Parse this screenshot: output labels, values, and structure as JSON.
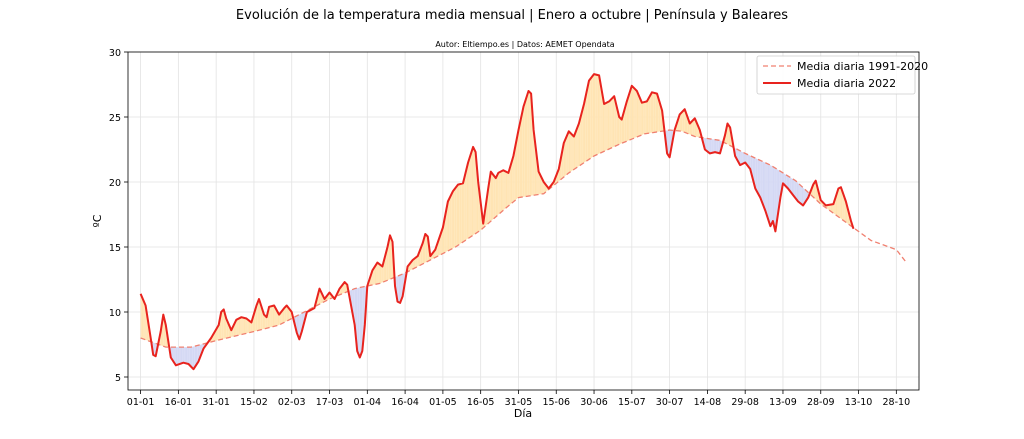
{
  "chart_data": {
    "type": "line",
    "title": "Evolución de la temperatura media mensual | Enero a octubre | Península y Baleares",
    "subtitle": "Autor: Eltiempo.es | Datos: AEMET Opendata",
    "xlabel": "Día",
    "ylabel": "ºC",
    "ylim": [
      4,
      30
    ],
    "xlim": [
      -5,
      309
    ],
    "yticks": [
      5,
      10,
      15,
      20,
      25,
      30
    ],
    "x_ticks": [
      {
        "x": 0,
        "label": "01-01"
      },
      {
        "x": 15,
        "label": "16-01"
      },
      {
        "x": 30,
        "label": "31-01"
      },
      {
        "x": 45,
        "label": "15-02"
      },
      {
        "x": 60,
        "label": "02-03"
      },
      {
        "x": 75,
        "label": "17-03"
      },
      {
        "x": 90,
        "label": "01-04"
      },
      {
        "x": 105,
        "label": "16-04"
      },
      {
        "x": 120,
        "label": "01-05"
      },
      {
        "x": 135,
        "label": "16-05"
      },
      {
        "x": 150,
        "label": "31-05"
      },
      {
        "x": 165,
        "label": "15-06"
      },
      {
        "x": 180,
        "label": "30-06"
      },
      {
        "x": 195,
        "label": "15-07"
      },
      {
        "x": 210,
        "label": "30-07"
      },
      {
        "x": 225,
        "label": "14-08"
      },
      {
        "x": 240,
        "label": "29-08"
      },
      {
        "x": 255,
        "label": "13-09"
      },
      {
        "x": 270,
        "label": "28-09"
      },
      {
        "x": 285,
        "label": "13-10"
      },
      {
        "x": 300,
        "label": "28-10"
      }
    ],
    "grid": true,
    "legend_position": "top-right",
    "colors": {
      "climatology": "#f08070",
      "current": "#e8231e",
      "warmer_fill": "#ffe4b3",
      "colder_fill": "#d4d8f4"
    },
    "series": [
      {
        "name": "Media diaria 1991-2020",
        "style": "dashed",
        "points": [
          [
            0,
            8.0
          ],
          [
            10,
            7.3
          ],
          [
            20,
            7.3
          ],
          [
            30,
            7.8
          ],
          [
            45,
            8.5
          ],
          [
            55,
            9.0
          ],
          [
            65,
            10.0
          ],
          [
            75,
            11.0
          ],
          [
            85,
            11.8
          ],
          [
            95,
            12.2
          ],
          [
            105,
            13.0
          ],
          [
            115,
            14.0
          ],
          [
            125,
            15.0
          ],
          [
            135,
            16.3
          ],
          [
            145,
            18.0
          ],
          [
            150,
            18.8
          ],
          [
            160,
            19.1
          ],
          [
            170,
            20.7
          ],
          [
            180,
            22.0
          ],
          [
            190,
            22.9
          ],
          [
            200,
            23.7
          ],
          [
            210,
            24.0
          ],
          [
            215,
            23.9
          ],
          [
            220,
            23.5
          ],
          [
            230,
            23.2
          ],
          [
            240,
            22.2
          ],
          [
            250,
            21.3
          ],
          [
            260,
            20.1
          ],
          [
            270,
            18.3
          ],
          [
            275,
            17.6
          ],
          [
            285,
            16.2
          ],
          [
            290,
            15.5
          ],
          [
            300,
            14.8
          ],
          [
            304,
            13.8
          ]
        ]
      },
      {
        "name": "Media diaria 2022",
        "style": "solid",
        "points": [
          [
            0,
            11.4
          ],
          [
            2,
            10.5
          ],
          [
            4,
            8.0
          ],
          [
            5,
            6.7
          ],
          [
            6,
            6.6
          ],
          [
            8,
            8.5
          ],
          [
            9,
            9.8
          ],
          [
            10,
            9.0
          ],
          [
            12,
            6.5
          ],
          [
            14,
            5.9
          ],
          [
            17,
            6.1
          ],
          [
            19,
            6.0
          ],
          [
            21,
            5.6
          ],
          [
            23,
            6.2
          ],
          [
            25,
            7.2
          ],
          [
            28,
            8.0
          ],
          [
            31,
            9.0
          ],
          [
            32,
            10.0
          ],
          [
            33,
            10.2
          ],
          [
            34,
            9.5
          ],
          [
            36,
            8.6
          ],
          [
            38,
            9.4
          ],
          [
            40,
            9.6
          ],
          [
            42,
            9.5
          ],
          [
            44,
            9.2
          ],
          [
            46,
            10.5
          ],
          [
            47,
            11.0
          ],
          [
            49,
            9.8
          ],
          [
            50,
            9.6
          ],
          [
            51,
            10.4
          ],
          [
            53,
            10.5
          ],
          [
            55,
            9.8
          ],
          [
            57,
            10.3
          ],
          [
            58,
            10.5
          ],
          [
            60,
            10.0
          ],
          [
            62,
            8.4
          ],
          [
            63,
            7.9
          ],
          [
            64,
            8.5
          ],
          [
            66,
            10.0
          ],
          [
            67,
            10.1
          ],
          [
            69,
            10.3
          ],
          [
            71,
            11.8
          ],
          [
            73,
            11.0
          ],
          [
            75,
            11.5
          ],
          [
            77,
            11.0
          ],
          [
            79,
            11.8
          ],
          [
            81,
            12.3
          ],
          [
            82,
            12.1
          ],
          [
            85,
            9.0
          ],
          [
            86,
            7.0
          ],
          [
            87,
            6.5
          ],
          [
            88,
            7.0
          ],
          [
            89,
            9.0
          ],
          [
            90,
            12.0
          ],
          [
            92,
            13.2
          ],
          [
            94,
            13.8
          ],
          [
            96,
            13.5
          ],
          [
            98,
            15.0
          ],
          [
            99,
            15.9
          ],
          [
            100,
            15.4
          ],
          [
            101,
            12.0
          ],
          [
            102,
            10.8
          ],
          [
            103,
            10.7
          ],
          [
            104,
            11.2
          ],
          [
            106,
            13.5
          ],
          [
            108,
            14.0
          ],
          [
            110,
            14.3
          ],
          [
            112,
            15.3
          ],
          [
            113,
            16.0
          ],
          [
            114,
            15.8
          ],
          [
            115,
            14.3
          ],
          [
            117,
            14.8
          ],
          [
            120,
            16.5
          ],
          [
            122,
            18.5
          ],
          [
            124,
            19.3
          ],
          [
            126,
            19.8
          ],
          [
            128,
            19.9
          ],
          [
            130,
            21.5
          ],
          [
            132,
            22.7
          ],
          [
            133,
            22.3
          ],
          [
            134,
            20.0
          ],
          [
            136,
            16.8
          ],
          [
            138,
            19.5
          ],
          [
            139,
            20.8
          ],
          [
            141,
            20.3
          ],
          [
            142,
            20.7
          ],
          [
            144,
            20.9
          ],
          [
            146,
            20.7
          ],
          [
            148,
            22.0
          ],
          [
            150,
            24.0
          ],
          [
            152,
            25.8
          ],
          [
            154,
            27.0
          ],
          [
            155,
            26.8
          ],
          [
            156,
            24.0
          ],
          [
            158,
            20.8
          ],
          [
            160,
            20.0
          ],
          [
            162,
            19.5
          ],
          [
            164,
            20.0
          ],
          [
            166,
            21.0
          ],
          [
            168,
            23.0
          ],
          [
            170,
            23.9
          ],
          [
            172,
            23.5
          ],
          [
            174,
            24.5
          ],
          [
            176,
            26.0
          ],
          [
            178,
            27.8
          ],
          [
            180,
            28.3
          ],
          [
            182,
            28.2
          ],
          [
            184,
            26.0
          ],
          [
            186,
            26.2
          ],
          [
            188,
            26.6
          ],
          [
            190,
            25.0
          ],
          [
            191,
            24.8
          ],
          [
            193,
            26.2
          ],
          [
            195,
            27.4
          ],
          [
            197,
            27.0
          ],
          [
            199,
            26.1
          ],
          [
            201,
            26.2
          ],
          [
            203,
            26.9
          ],
          [
            205,
            26.8
          ],
          [
            207,
            25.5
          ],
          [
            209,
            22.2
          ],
          [
            210,
            21.9
          ],
          [
            212,
            24.0
          ],
          [
            214,
            25.2
          ],
          [
            216,
            25.6
          ],
          [
            218,
            24.5
          ],
          [
            220,
            24.9
          ],
          [
            222,
            24.0
          ],
          [
            224,
            22.5
          ],
          [
            226,
            22.2
          ],
          [
            228,
            22.3
          ],
          [
            230,
            22.2
          ],
          [
            232,
            23.6
          ],
          [
            233,
            24.5
          ],
          [
            234,
            24.2
          ],
          [
            236,
            22.0
          ],
          [
            238,
            21.3
          ],
          [
            240,
            21.5
          ],
          [
            242,
            21.0
          ],
          [
            244,
            19.5
          ],
          [
            246,
            18.8
          ],
          [
            248,
            17.8
          ],
          [
            250,
            16.6
          ],
          [
            251,
            17.0
          ],
          [
            252,
            16.2
          ],
          [
            254,
            18.8
          ],
          [
            255,
            19.9
          ],
          [
            257,
            19.5
          ],
          [
            259,
            19.0
          ],
          [
            261,
            18.5
          ],
          [
            263,
            18.2
          ],
          [
            265,
            18.8
          ],
          [
            267,
            19.8
          ],
          [
            268,
            20.1
          ],
          [
            270,
            18.6
          ],
          [
            272,
            18.2
          ],
          [
            275,
            18.3
          ],
          [
            277,
            19.5
          ],
          [
            278,
            19.6
          ],
          [
            280,
            18.5
          ],
          [
            282,
            17.0
          ],
          [
            283,
            16.4
          ]
        ]
      }
    ]
  }
}
